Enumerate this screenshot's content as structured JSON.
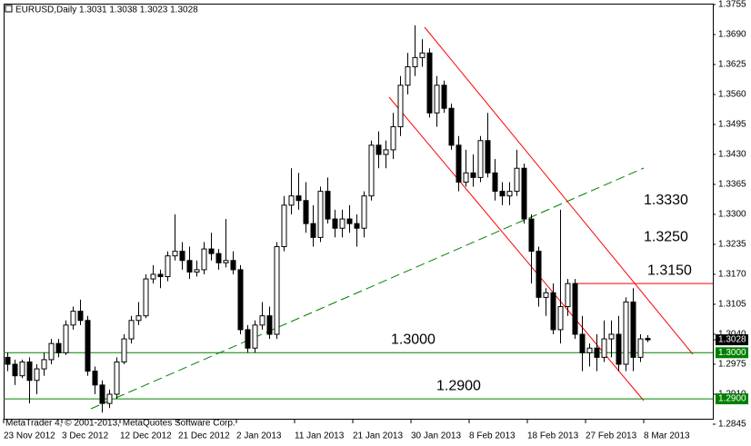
{
  "chart_data": {
    "type": "candlestick",
    "title": "EURUSD,Daily  1.3031 1.3038 1.3023 1.3028",
    "footer": "MetaTrader 4, © 2001-2013, MetaQuotes Software Corp.",
    "categories": [
      "23 Nov 2012",
      null,
      null,
      null,
      null,
      null,
      null,
      null,
      "3 Dec 2012",
      null,
      null,
      null,
      null,
      null,
      null,
      null,
      "12 Dec 2012",
      null,
      null,
      null,
      null,
      null,
      null,
      null,
      "21 Dec 2012",
      null,
      null,
      null,
      null,
      null,
      null,
      null,
      "2 Jan 2013",
      null,
      null,
      null,
      null,
      null,
      null,
      null,
      "11 Jan 2013",
      null,
      null,
      null,
      null,
      null,
      null,
      null,
      "21 Jan 2013",
      null,
      null,
      null,
      null,
      null,
      null,
      null,
      "30 Jan 2013",
      null,
      null,
      null,
      null,
      null,
      null,
      null,
      "8 Feb 2013",
      null,
      null,
      null,
      null,
      null,
      null,
      null,
      "18 Feb 2013",
      null,
      null,
      null,
      null,
      null,
      null,
      null,
      "27 Feb 2013",
      null,
      null,
      null,
      null,
      null,
      null,
      null,
      "8 Mar 2013"
    ],
    "open": [
      1.299,
      1.2975,
      1.295,
      1.298,
      1.294,
      1.2965,
      1.2985,
      1.302,
      1.3,
      1.306,
      1.309,
      1.307,
      1.296,
      1.293,
      1.289,
      1.291,
      1.298,
      1.303,
      1.307,
      1.308,
      1.316,
      1.317,
      1.3165,
      1.321,
      1.322,
      1.32,
      1.3175,
      1.318,
      1.3225,
      1.3215,
      1.3195,
      1.32,
      1.318,
      1.305,
      1.301,
      1.306,
      1.308,
      1.304,
      1.323,
      1.332,
      1.334,
      1.333,
      1.328,
      1.325,
      1.335,
      1.329,
      1.327,
      1.329,
      1.328,
      1.327,
      1.334,
      1.345,
      1.343,
      1.344,
      1.349,
      1.358,
      1.362,
      1.364,
      1.365,
      1.352,
      1.358,
      1.353,
      1.345,
      1.337,
      1.339,
      1.338,
      1.346,
      1.339,
      1.335,
      1.334,
      1.335,
      1.34,
      1.329,
      1.322,
      1.312,
      1.313,
      1.305,
      1.31,
      1.315,
      1.304,
      1.3,
      1.301,
      1.299,
      1.303,
      1.304,
      1.2975,
      1.311,
      1.299,
      1.3031
    ],
    "high": [
      1.3,
      1.2985,
      1.2985,
      1.299,
      1.2975,
      1.3,
      1.303,
      1.303,
      1.307,
      1.31,
      1.3115,
      1.308,
      1.297,
      1.294,
      1.292,
      1.299,
      1.304,
      1.308,
      1.311,
      1.317,
      1.319,
      1.318,
      1.322,
      1.33,
      1.324,
      1.323,
      1.32,
      1.324,
      1.326,
      1.3225,
      1.329,
      1.322,
      1.319,
      1.306,
      1.307,
      1.311,
      1.31,
      1.324,
      1.334,
      1.34,
      1.339,
      1.337,
      1.332,
      1.336,
      1.338,
      1.331,
      1.331,
      1.332,
      1.33,
      1.335,
      1.346,
      1.348,
      1.346,
      1.352,
      1.36,
      1.365,
      1.371,
      1.368,
      1.366,
      1.36,
      1.359,
      1.354,
      1.347,
      1.344,
      1.343,
      1.347,
      1.352,
      1.342,
      1.337,
      1.337,
      1.344,
      1.341,
      1.33,
      1.323,
      1.314,
      1.315,
      1.331,
      1.316,
      1.316,
      1.308,
      1.302,
      1.304,
      1.307,
      1.307,
      1.308,
      1.312,
      1.314,
      1.304,
      1.3038
    ],
    "low": [
      1.296,
      1.293,
      1.2945,
      1.289,
      1.291,
      1.295,
      1.2975,
      1.299,
      1.2995,
      1.305,
      1.306,
      1.295,
      1.291,
      1.287,
      1.288,
      1.29,
      1.2975,
      1.302,
      1.306,
      1.3075,
      1.315,
      1.314,
      1.3155,
      1.32,
      1.318,
      1.316,
      1.3165,
      1.317,
      1.32,
      1.318,
      1.3185,
      1.317,
      1.304,
      1.3,
      1.3,
      1.305,
      1.303,
      1.303,
      1.322,
      1.33,
      1.331,
      1.326,
      1.323,
      1.324,
      1.328,
      1.325,
      1.325,
      1.326,
      1.323,
      1.325,
      1.333,
      1.34,
      1.34,
      1.342,
      1.347,
      1.356,
      1.36,
      1.362,
      1.351,
      1.349,
      1.352,
      1.344,
      1.335,
      1.336,
      1.336,
      1.337,
      1.338,
      1.333,
      1.332,
      1.332,
      1.334,
      1.328,
      1.315,
      1.31,
      1.308,
      1.304,
      1.302,
      1.308,
      1.303,
      1.296,
      1.297,
      1.296,
      1.298,
      1.299,
      1.296,
      1.296,
      1.296,
      1.298,
      1.3023
    ],
    "close": [
      1.2975,
      1.295,
      1.298,
      1.294,
      1.2965,
      1.2985,
      1.302,
      1.3,
      1.306,
      1.309,
      1.307,
      1.296,
      1.293,
      1.289,
      1.291,
      1.298,
      1.303,
      1.307,
      1.308,
      1.316,
      1.317,
      1.3165,
      1.321,
      1.322,
      1.32,
      1.3175,
      1.318,
      1.3225,
      1.3215,
      1.3195,
      1.32,
      1.318,
      1.305,
      1.301,
      1.306,
      1.308,
      1.304,
      1.323,
      1.332,
      1.334,
      1.333,
      1.328,
      1.325,
      1.335,
      1.329,
      1.327,
      1.329,
      1.328,
      1.327,
      1.334,
      1.345,
      1.343,
      1.344,
      1.349,
      1.358,
      1.362,
      1.364,
      1.365,
      1.352,
      1.358,
      1.353,
      1.345,
      1.337,
      1.339,
      1.338,
      1.346,
      1.339,
      1.335,
      1.334,
      1.335,
      1.34,
      1.329,
      1.322,
      1.312,
      1.313,
      1.305,
      1.31,
      1.315,
      1.304,
      1.3,
      1.301,
      1.299,
      1.303,
      1.304,
      1.2975,
      1.311,
      1.299,
      1.303,
      1.3028
    ],
    "ylim": [
      1.2845,
      1.3755
    ],
    "yticks": [
      1.3755,
      {
        "value": 1.369,
        "label": "1.3690"
      },
      1.3625,
      {
        "value": 1.356,
        "label": "1.3560"
      },
      1.3495,
      {
        "value": 1.343,
        "label": "1.3430"
      },
      1.3365,
      {
        "value": 1.33,
        "label": "1.3300"
      },
      1.3235,
      {
        "value": 1.317,
        "label": "1.3170"
      },
      1.3105,
      {
        "value": 1.304,
        "label": "1.3040"
      },
      1.2975,
      {
        "value": 1.291,
        "label": "1.2910"
      },
      1.2845
    ],
    "hlines": [
      {
        "value": 1.3,
        "label": "1.3000",
        "color": "#008000",
        "axis_tag": true
      },
      {
        "value": 1.29,
        "label": "1.2900",
        "color": "#008000",
        "axis_tag": true
      },
      {
        "value": 1.315,
        "label": "1.3150",
        "color": "#ff0000",
        "axis_tag": false
      }
    ],
    "annotations": [
      {
        "value": 1.333,
        "label": "1.3330"
      },
      {
        "value": 1.325,
        "label": "1.3250"
      }
    ],
    "bull_color": "#ffffff",
    "bear_color": "#000000"
  }
}
